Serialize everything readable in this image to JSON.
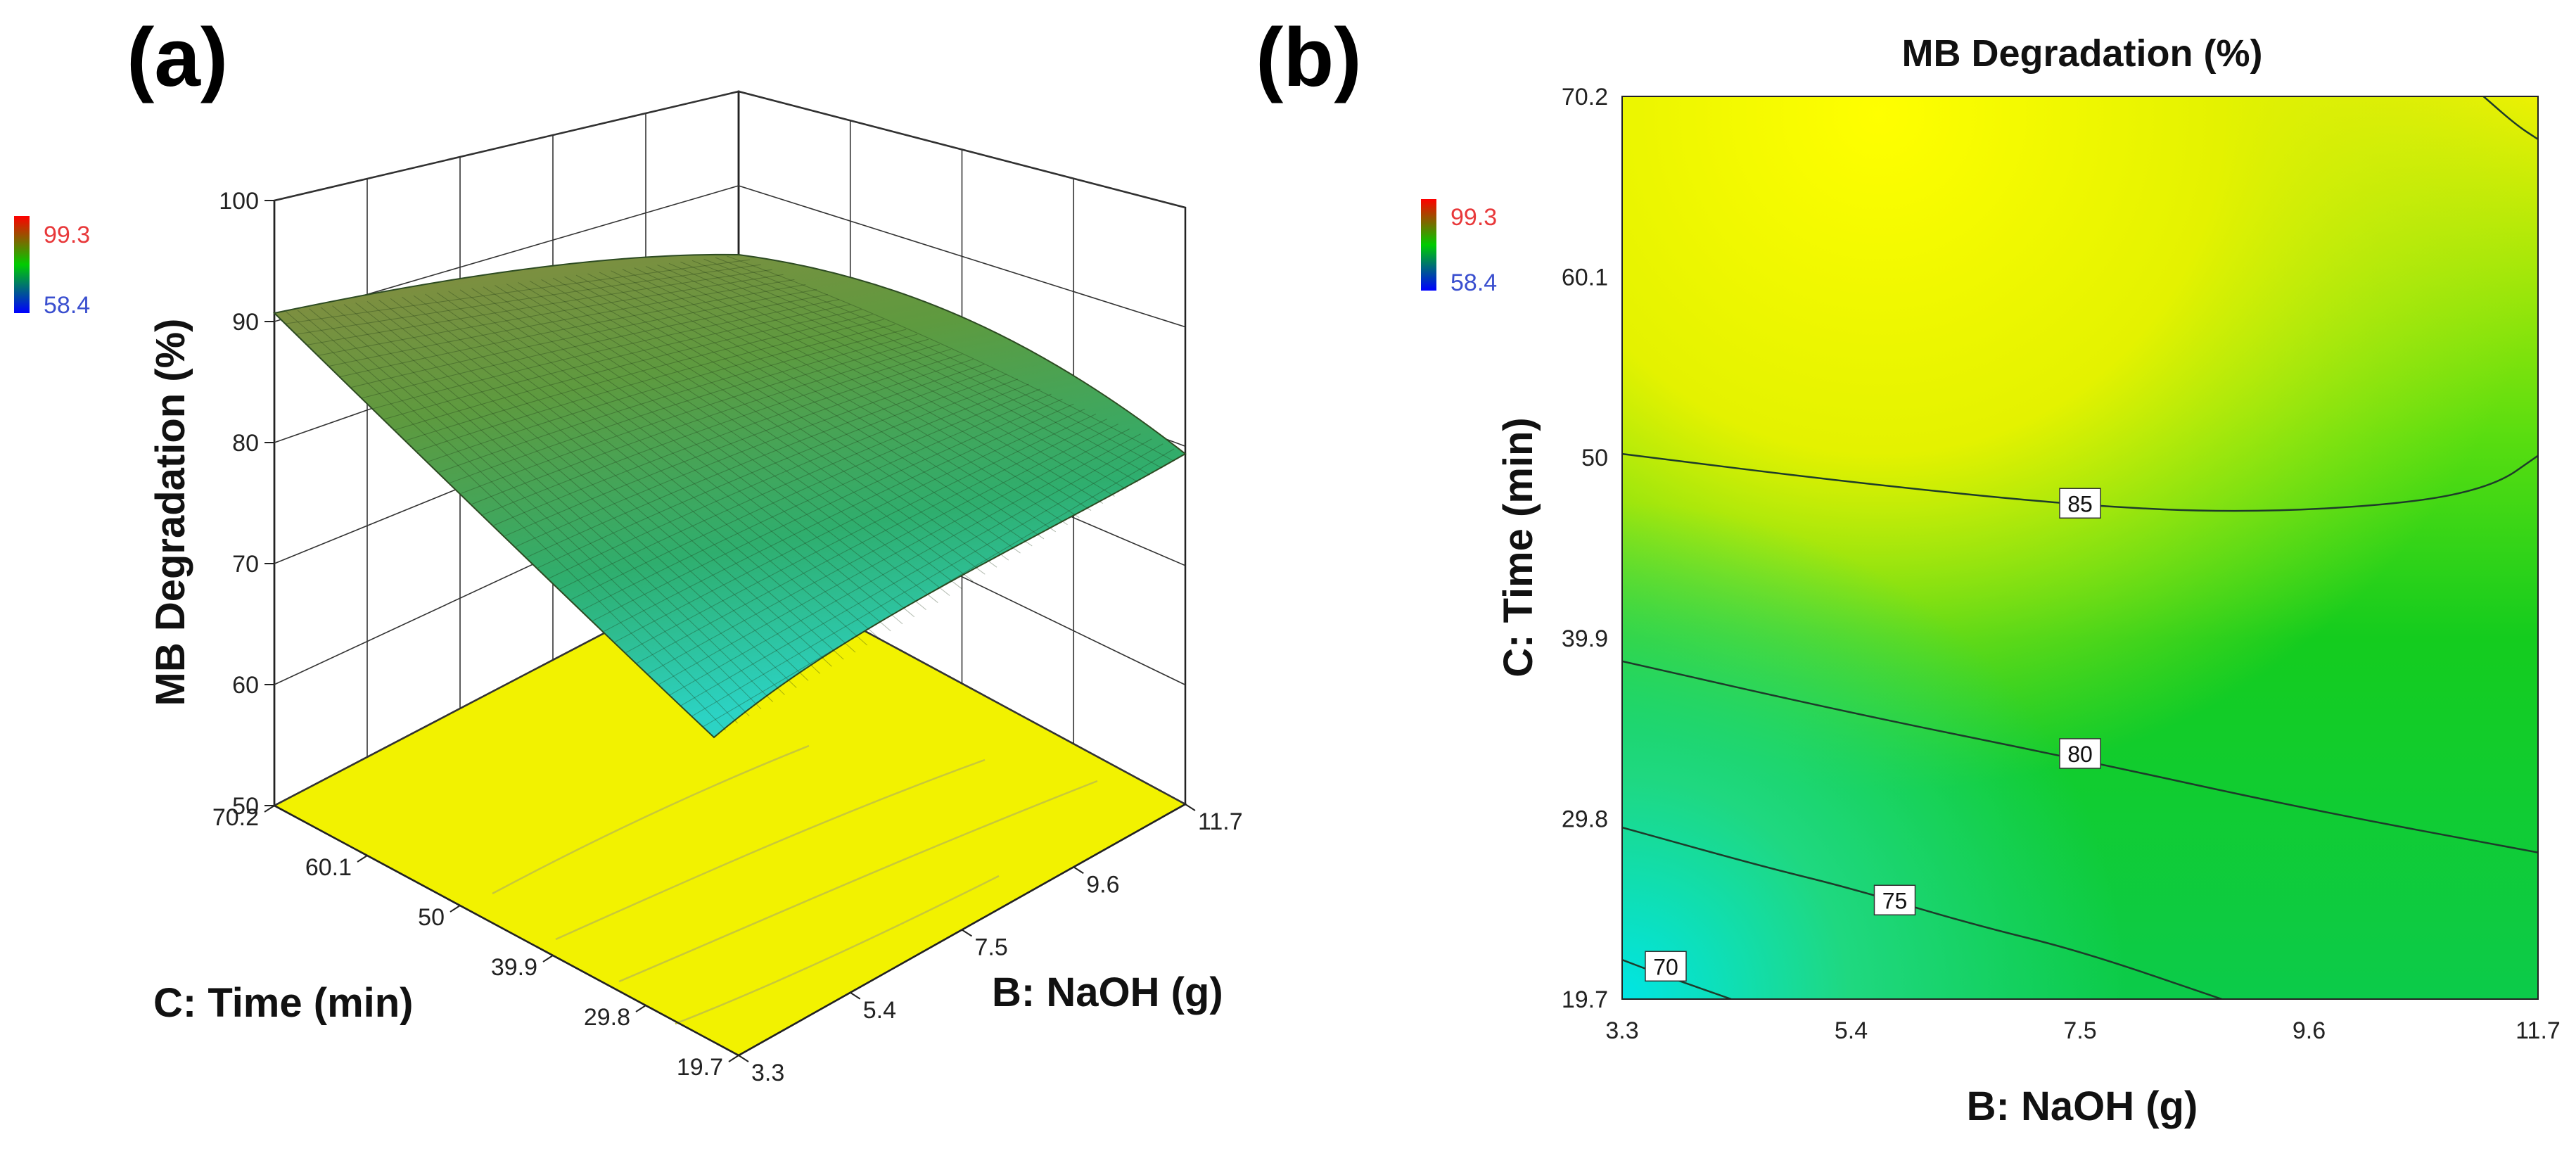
{
  "panels": {
    "a": {
      "label": "(a)"
    },
    "b": {
      "label": "(b)"
    }
  },
  "colors": {
    "high": "#ff0000",
    "mid": "#00cc00",
    "low": "#0000ff",
    "legend_high_text": "#e8383a",
    "legend_low_text": "#3a4fcf",
    "surface_high": "#8a8a40",
    "surface_low": "#2cd3c4",
    "floor": "#f2f200"
  },
  "chart_data": [
    {
      "type": "surface",
      "panel": "(a)",
      "title": "",
      "zlabel": "MB Degradation  (%)",
      "xlabel": "B: NaOH  (g)",
      "ylabel": "C: Time  (min)",
      "z_ticks": [
        "100",
        "90",
        "80",
        "70",
        "60",
        "50"
      ],
      "z_tick_values": [
        100,
        90,
        80,
        70,
        60,
        50
      ],
      "zlim": [
        50,
        100
      ],
      "x_ticks": [
        "3.3",
        "5.4",
        "7.5",
        "9.6",
        "11.7"
      ],
      "x_tick_values": [
        3.3,
        5.4,
        7.5,
        9.6,
        11.7
      ],
      "y_ticks": [
        "70.2",
        "60.1",
        "50",
        "39.9",
        "29.8",
        "19.7"
      ],
      "y_tick_values": [
        70.2,
        60.1,
        50,
        39.9,
        29.8,
        19.7
      ],
      "legend": {
        "max_label": "99.3",
        "min_label": "58.4",
        "max": 99.3,
        "min": 58.4
      },
      "corner_values": [
        {
          "naoh": 3.3,
          "time": 70.2,
          "degradation": 90
        },
        {
          "naoh": 11.7,
          "time": 70.2,
          "degradation": 90
        },
        {
          "naoh": 11.7,
          "time": 19.7,
          "degradation": 79
        },
        {
          "naoh": 3.3,
          "time": 19.7,
          "degradation": 66
        }
      ]
    },
    {
      "type": "contour",
      "panel": "(b)",
      "title": "MB Degradation  (%)",
      "xlabel": "B: NaOH  (g)",
      "ylabel": "C: Time  (min)",
      "x_ticks": [
        "3.3",
        "5.4",
        "7.5",
        "9.6",
        "11.7"
      ],
      "x_tick_values": [
        3.3,
        5.4,
        7.5,
        9.6,
        11.7
      ],
      "y_ticks": [
        "70.2",
        "60.1",
        "50",
        "39.9",
        "29.8",
        "19.7"
      ],
      "y_tick_values": [
        70.2,
        60.1,
        50,
        39.9,
        29.8,
        19.7
      ],
      "xlim": [
        3.3,
        11.7
      ],
      "ylim": [
        19.7,
        70.2
      ],
      "legend": {
        "max_label": "99.3",
        "min_label": "58.4",
        "max": 99.3,
        "min": 58.4
      },
      "contours": [
        {
          "level": 85,
          "label": "85",
          "label_at": [
            7.5,
            47.4
          ],
          "points": [
            [
              3.3,
              50.2
            ],
            [
              5.4,
              48.6
            ],
            [
              7.5,
              47.3
            ],
            [
              9.0,
              46.9
            ],
            [
              10.5,
              47.4
            ],
            [
              11.3,
              48.4
            ],
            [
              11.7,
              50.1
            ]
          ]
        },
        {
          "level": 80,
          "label": "80",
          "label_at": [
            7.5,
            33.4
          ],
          "points": [
            [
              3.3,
              38.6
            ],
            [
              5.4,
              35.7
            ],
            [
              7.5,
              33.1
            ],
            [
              9.6,
              30.3
            ],
            [
              11.7,
              27.9
            ]
          ]
        },
        {
          "level": 75,
          "label": "75",
          "label_at": [
            5.8,
            25.2
          ],
          "points": [
            [
              3.3,
              29.3
            ],
            [
              4.6,
              27.1
            ],
            [
              5.4,
              25.9
            ],
            [
              6.5,
              23.9
            ],
            [
              7.5,
              22.4
            ],
            [
              8.8,
              19.7
            ]
          ]
        },
        {
          "level": 70,
          "label": "70",
          "label_at": [
            3.7,
            21.5
          ],
          "points": [
            [
              3.3,
              21.9
            ],
            [
              3.6,
              21.2
            ],
            [
              4.3,
              19.7
            ]
          ]
        },
        {
          "level": 90,
          "label": "",
          "points": [
            [
              11.2,
              70.2
            ],
            [
              11.5,
              68.6
            ],
            [
              11.7,
              67.8
            ]
          ]
        }
      ]
    }
  ]
}
